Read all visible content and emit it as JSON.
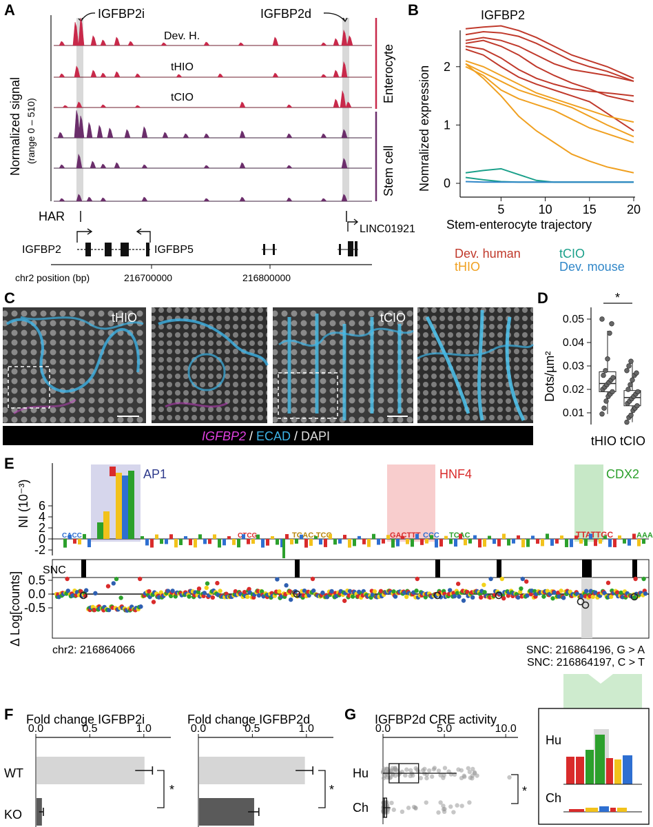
{
  "panels": {
    "A": "A",
    "B": "B",
    "C": "C",
    "D": "D",
    "E": "E",
    "F": "F",
    "G": "G"
  },
  "colors": {
    "dev_human": "#c0392b",
    "tHIO": "#f0a020",
    "tCIO": "#1aa08a",
    "dev_mouse": "#2f86c8",
    "stem": "#6b2e6b",
    "enterocyte_bar": "#c8294a",
    "gray_highlight": "#d9d9d9"
  },
  "panelA": {
    "ylabel": "Normalized signal",
    "ylabel_sub": "(range 0 – 510)",
    "label_igfbp2i": "IGFBP2i",
    "label_igfbp2d": "IGFBP2d",
    "tracks": [
      "Dev. H.",
      "tHIO",
      "tCIO"
    ],
    "group_enterocyte": "Enterocyte",
    "group_stem": "Stem cell",
    "har": "HAR",
    "genes": [
      "IGFBP2",
      "IGFBP5",
      "LINC01921"
    ],
    "xaxis_label": "chr2 position (bp)",
    "ticks": [
      "216700000",
      "216800000"
    ]
  },
  "panelB": {
    "title": "IGFBP2",
    "ylabel": "Nomralized expression",
    "xlabel": "Stem-enterocyte trajectory",
    "legend": [
      "Dev. human",
      "tHIO",
      "tCIO",
      "Dev. mouse"
    ],
    "chart_data": {
      "type": "line",
      "title": "IGFBP2",
      "xlabel": "Stem-enterocyte trajectory",
      "ylabel": "Nomralized expression",
      "xlim": [
        1,
        20
      ],
      "ylim": [
        0,
        2.6
      ],
      "xticks": [
        "5",
        "10",
        "15",
        "20"
      ],
      "yticks": [
        "0",
        "1",
        "2"
      ],
      "x": [
        1,
        3,
        5,
        7,
        9,
        11,
        13,
        15,
        17,
        20
      ],
      "series": [
        {
          "name": "Dev. human",
          "color": "#c0392b",
          "values": [
            2.65,
            2.68,
            2.7,
            2.62,
            2.5,
            2.35,
            2.2,
            2.1,
            2.0,
            1.8
          ]
        },
        {
          "name": "Dev. human",
          "color": "#c0392b",
          "values": [
            2.55,
            2.6,
            2.58,
            2.52,
            2.4,
            2.25,
            2.1,
            2.0,
            1.92,
            1.75
          ]
        },
        {
          "name": "Dev. human",
          "color": "#c0392b",
          "values": [
            2.45,
            2.5,
            2.45,
            2.35,
            2.2,
            2.05,
            1.95,
            1.9,
            1.85,
            1.75
          ]
        },
        {
          "name": "Dev. human",
          "color": "#c0392b",
          "values": [
            2.4,
            2.45,
            2.35,
            2.2,
            2.0,
            1.85,
            1.72,
            1.62,
            1.5,
            1.4
          ]
        },
        {
          "name": "Dev. human",
          "color": "#c0392b",
          "values": [
            2.35,
            2.3,
            2.15,
            1.95,
            1.8,
            1.7,
            1.62,
            1.58,
            1.55,
            1.5
          ]
        },
        {
          "name": "Dev. human",
          "color": "#c0392b",
          "values": [
            2.3,
            2.2,
            2.0,
            1.82,
            1.7,
            1.6,
            1.5,
            1.4,
            1.2,
            0.9
          ]
        },
        {
          "name": "tHIO",
          "color": "#f0a020",
          "values": [
            2.1,
            2.0,
            1.85,
            1.7,
            1.55,
            1.45,
            1.35,
            1.25,
            1.15,
            1.05
          ]
        },
        {
          "name": "tHIO",
          "color": "#f0a020",
          "values": [
            2.05,
            1.9,
            1.75,
            1.6,
            1.5,
            1.4,
            1.3,
            1.15,
            1.0,
            0.8
          ]
        },
        {
          "name": "tHIO",
          "color": "#f0a020",
          "values": [
            2.0,
            1.85,
            1.6,
            1.45,
            1.35,
            1.25,
            1.1,
            0.95,
            0.85,
            0.7
          ]
        },
        {
          "name": "tHIO",
          "color": "#f0a020",
          "values": [
            2.05,
            1.8,
            1.5,
            1.15,
            0.9,
            0.7,
            0.5,
            0.38,
            0.28,
            0.18
          ]
        },
        {
          "name": "tCIO",
          "color": "#1aa08a",
          "values": [
            0.18,
            0.22,
            0.25,
            0.15,
            0.05,
            0.02,
            0.02,
            0.02,
            0.02,
            0.02
          ]
        },
        {
          "name": "tCIO",
          "color": "#1aa08a",
          "values": [
            0.1,
            0.06,
            0.03,
            0.02,
            0.02,
            0.02,
            0.02,
            0.02,
            0.02,
            0.02
          ]
        },
        {
          "name": "Dev. mouse",
          "color": "#2f86c8",
          "values": [
            0.03,
            0.02,
            0.02,
            0.02,
            0.02,
            0.02,
            0.02,
            0.02,
            0.02,
            0.02
          ]
        }
      ]
    }
  },
  "panelC": {
    "labels": [
      "tHIO",
      "tCIO"
    ],
    "caption_part1": "IGFBP2",
    "caption_sep1": " / ",
    "caption_part2": "ECAD",
    "caption_sep2": " / ",
    "caption_part3": "DAPI"
  },
  "panelD": {
    "ylabel": "Dots/µm²",
    "sig": "*",
    "chart_data": {
      "type": "box",
      "categories": [
        "tHIO",
        "tCIO"
      ],
      "ylim": [
        0.005,
        0.055
      ],
      "yticks": [
        "0.01",
        "0.02",
        "0.03",
        "0.04",
        "0.05"
      ],
      "boxes": [
        {
          "name": "tHIO",
          "q1": 0.019,
          "median": 0.0225,
          "q3": 0.0275,
          "whisker_low": 0.0095,
          "whisker_high": 0.045,
          "points": [
            0.0095,
            0.012,
            0.015,
            0.017,
            0.018,
            0.019,
            0.02,
            0.021,
            0.022,
            0.023,
            0.024,
            0.025,
            0.026,
            0.028,
            0.033,
            0.044,
            0.048,
            0.05
          ]
        },
        {
          "name": "tCIO",
          "q1": 0.013,
          "median": 0.0165,
          "q3": 0.0195,
          "whisker_low": 0.006,
          "whisker_high": 0.032,
          "points": [
            0.006,
            0.008,
            0.009,
            0.011,
            0.012,
            0.013,
            0.014,
            0.015,
            0.016,
            0.017,
            0.018,
            0.019,
            0.02,
            0.022,
            0.024,
            0.026,
            0.027,
            0.028,
            0.03,
            0.032
          ]
        }
      ]
    }
  },
  "panelE": {
    "ylabel_top": "NI (10⁻³)",
    "yticks_top": [
      "6",
      "4",
      "2",
      "0",
      "-2"
    ],
    "motifs": [
      "AP1",
      "HNF4",
      "CDX2"
    ],
    "snc_label": "SNC",
    "ylabel_bottom": "Δ Log[counts]",
    "yticks_bottom": [
      "0.5",
      "0.0",
      "-0.5"
    ],
    "chr_label": "chr2: 216864066",
    "snc1": "SNC: 216864196, G > A",
    "snc2": "SNC: 216864197, C > T",
    "inset_hu": "Hu",
    "inset_ch": "Ch",
    "seq_top": [
      "TGA",
      "CTCG",
      "CACC",
      "TGAC-TCG",
      "GACTTT",
      "CCC",
      "TCAC",
      "TTATTGC",
      "AAA"
    ]
  },
  "panelF": {
    "title1": "Fold change IGFBP2i",
    "title2": "Fold change IGFBP2d",
    "xticks": [
      "0.0",
      "0.5",
      "1.0"
    ],
    "categories": [
      "WT",
      "KO"
    ],
    "sig": "*",
    "chart_data": [
      {
        "type": "bar",
        "title": "Fold change IGFBP2i",
        "categories": [
          "WT",
          "KO"
        ],
        "values": [
          1.0,
          0.05
        ],
        "errors": [
          0.08,
          0.02
        ],
        "xlim": [
          0,
          1.25
        ]
      },
      {
        "type": "bar",
        "title": "Fold change IGFBP2d",
        "categories": [
          "WT",
          "KO"
        ],
        "values": [
          0.98,
          0.51
        ],
        "errors": [
          0.08,
          0.05
        ],
        "xlim": [
          0,
          1.25
        ]
      }
    ]
  },
  "panelG": {
    "title": "IGFBP2d CRE activity",
    "xticks": [
      "0.0",
      "5.0",
      "10.0"
    ],
    "categories": [
      "Hu",
      "Ch"
    ],
    "sig": "*",
    "chart_data": {
      "type": "box",
      "categories": [
        "Hu",
        "Ch"
      ],
      "xlim": [
        0,
        11
      ],
      "boxes": [
        {
          "name": "Hu",
          "q1": 0.5,
          "median": 1.3,
          "q3": 2.9,
          "whisker_low": 0,
          "whisker_high": 6.0
        },
        {
          "name": "Ch",
          "q1": 0.0,
          "median": 0.1,
          "q3": 0.3,
          "whisker_low": 0,
          "whisker_high": 0.6
        }
      ]
    }
  }
}
